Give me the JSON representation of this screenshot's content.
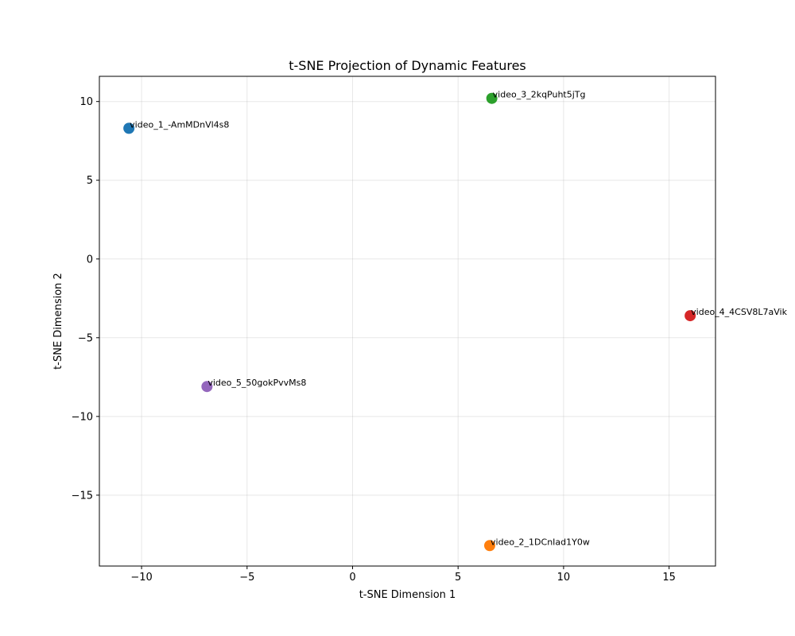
{
  "chart_data": {
    "type": "scatter",
    "title": "t-SNE Projection of Dynamic Features",
    "xlabel": "t-SNE Dimension 1",
    "ylabel": "t-SNE Dimension 2",
    "xlim": [
      -12.0,
      17.2
    ],
    "ylim": [
      -19.5,
      11.6
    ],
    "xticks": [
      -10,
      -5,
      0,
      5,
      10,
      15
    ],
    "yticks": [
      -15,
      -10,
      -5,
      0,
      5,
      10
    ],
    "xtick_labels": [
      "−10",
      "−5",
      "0",
      "5",
      "10",
      "15"
    ],
    "ytick_labels": [
      "−15",
      "−10",
      "−5",
      "0",
      "5",
      "10"
    ],
    "grid": true,
    "points": [
      {
        "label": "video_1_-AmMDnVl4s8",
        "x": -10.6,
        "y": 8.3,
        "color": "#1f77b4"
      },
      {
        "label": "video_2_1DCnIad1Y0w",
        "x": 6.5,
        "y": -18.2,
        "color": "#ff7f0e"
      },
      {
        "label": "video_3_2kqPuht5jTg",
        "x": 6.6,
        "y": 10.2,
        "color": "#2ca02c"
      },
      {
        "label": "video_4_4CSV8L7aVik",
        "x": 16.0,
        "y": -3.6,
        "color": "#d62728"
      },
      {
        "label": "video_5_50gokPvvMs8",
        "x": -6.9,
        "y": -8.1,
        "color": "#9467bd"
      }
    ]
  }
}
